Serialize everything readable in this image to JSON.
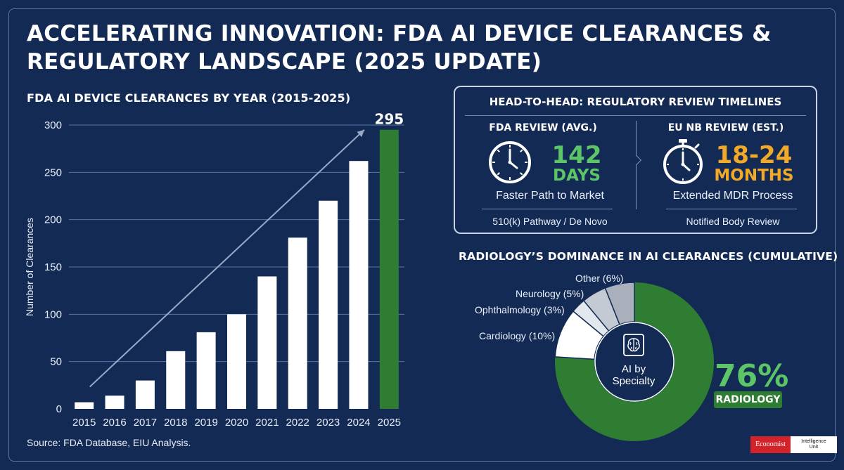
{
  "title": "ACCELERATING INNOVATION: FDA AI DEVICE CLEARANCES & REGULATORY LANDSCAPE (2025 UPDATE)",
  "bar_section": {
    "title": "FDA AI DEVICE CLEARANCES BY YEAR (2015-2025)",
    "source": "Source: FDA Database, EIU Analysis."
  },
  "chart_data": [
    {
      "type": "bar",
      "title": "FDA AI DEVICE CLEARANCES BY YEAR (2015-2025)",
      "xlabel": "",
      "ylabel": "Number of Clearances",
      "categories": [
        "2015",
        "2016",
        "2017",
        "2018",
        "2019",
        "2020",
        "2021",
        "2022",
        "2023",
        "2024",
        "2025"
      ],
      "values": [
        7,
        14,
        30,
        61,
        81,
        100,
        140,
        181,
        220,
        262,
        295
      ],
      "highlight_index": 10,
      "highlight_label": "295",
      "yticks": [
        0,
        50,
        100,
        150,
        200,
        250,
        300
      ],
      "ylim": [
        0,
        300
      ],
      "grid": true,
      "trend_arrow": true,
      "colors": {
        "bar": "#ffffff",
        "highlight": "#2e7d32",
        "highlight_label": "#ffffff",
        "grid": "#5d75a3"
      }
    },
    {
      "type": "pie",
      "title": "RADIOLOGY’S DOMINANCE IN AI CLEARANCES (CUMULATIVE)",
      "center_label": "AI by Specialty",
      "center_icon": "brain-scan-icon",
      "slices": [
        {
          "label": "Radiology",
          "value": 76,
          "color": "#2e7d32"
        },
        {
          "label": "Cardiology (10%)",
          "value": 10,
          "color": "#ffffff"
        },
        {
          "label": "Ophthalmology (3%)",
          "value": 3,
          "color": "#e3e7ee"
        },
        {
          "label": "Neurology (5%)",
          "value": 5,
          "color": "#c4cad4"
        },
        {
          "label": "Other (6%)",
          "value": 6,
          "color": "#a9b0bb"
        }
      ],
      "highlight_value": "76%",
      "highlight_badge": "RADIOLOGY"
    }
  ],
  "h2h": {
    "title": "HEAD-TO-HEAD: REGULATORY REVIEW TIMELINES",
    "fda": {
      "head": "FDA REVIEW (AVG.)",
      "icon": "clock-icon",
      "value": "142",
      "unit": "DAYS",
      "subtitle": "Faster Path to Market",
      "footer": "510(k) Pathway / De Novo",
      "color": "#5cc567"
    },
    "eu": {
      "head": "EU NB REVIEW (EST.)",
      "icon": "stopwatch-icon",
      "value": "18-24",
      "unit": "MONTHS",
      "subtitle": "Extended MDR Process",
      "footer": "Notified Body Review",
      "color": "#f2a928"
    }
  },
  "pie_section": {
    "title": "RADIOLOGY’S DOMINANCE IN AI CLEARANCES (CUMULATIVE)",
    "center_line1": "AI by",
    "center_line2": "Specialty",
    "labels": {
      "other": "Other (6%)",
      "neurology": "Neurology (5%)",
      "ophthalmology": "Ophthalmology (3%)",
      "cardiology": "Cardiology (10%)"
    },
    "big_pct": "76%",
    "badge": "RADIOLOGY"
  },
  "logo": {
    "left": "Economist",
    "right_line1": "Intelligence",
    "right_line2": "Unit"
  }
}
